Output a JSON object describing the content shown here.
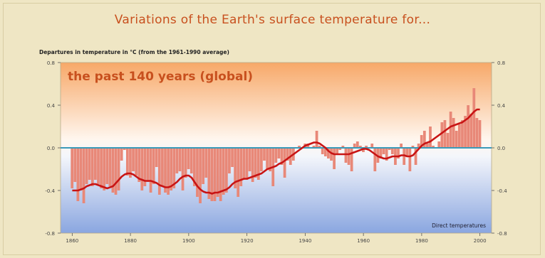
{
  "main_title": "Variations of the Earth's surface temperature for...",
  "axis_note": "Departures in temperature in °C (from the 1961-1990 average)",
  "colors": {
    "title": "#c8501e",
    "warm_top": "#f7a868",
    "cool_bottom": "#8aa6e0",
    "bars": "#e88878",
    "smooth_line": "#c81414",
    "baseline": "#3a9ab8"
  },
  "chart_data": {
    "type": "bar",
    "panel_title": "the past 140 years (global)",
    "legend": "Direct temperatures",
    "xlim": [
      1856,
      2004
    ],
    "ylim": [
      -0.8,
      0.8
    ],
    "x_ticks": [
      1860,
      1880,
      1900,
      1920,
      1940,
      1960,
      1980,
      2000
    ],
    "y_ticks": [
      -0.8,
      -0.4,
      0.0,
      0.4,
      0.8
    ],
    "y_tick_labels": [
      "-0.8",
      "-0.4",
      "0.0",
      "0.4",
      "0.8"
    ],
    "x": [
      1860,
      1861,
      1862,
      1863,
      1864,
      1865,
      1866,
      1867,
      1868,
      1869,
      1870,
      1871,
      1872,
      1873,
      1874,
      1875,
      1876,
      1877,
      1878,
      1879,
      1880,
      1881,
      1882,
      1883,
      1884,
      1885,
      1886,
      1887,
      1888,
      1889,
      1890,
      1891,
      1892,
      1893,
      1894,
      1895,
      1896,
      1897,
      1898,
      1899,
      1900,
      1901,
      1902,
      1903,
      1904,
      1905,
      1906,
      1907,
      1908,
      1909,
      1910,
      1911,
      1912,
      1913,
      1914,
      1915,
      1916,
      1917,
      1918,
      1919,
      1920,
      1921,
      1922,
      1923,
      1924,
      1925,
      1926,
      1927,
      1928,
      1929,
      1930,
      1931,
      1932,
      1933,
      1934,
      1935,
      1936,
      1937,
      1938,
      1939,
      1940,
      1941,
      1942,
      1943,
      1944,
      1945,
      1946,
      1947,
      1948,
      1949,
      1950,
      1951,
      1952,
      1953,
      1954,
      1955,
      1956,
      1957,
      1958,
      1959,
      1960,
      1961,
      1962,
      1963,
      1964,
      1965,
      1966,
      1967,
      1968,
      1969,
      1970,
      1971,
      1972,
      1973,
      1974,
      1975,
      1976,
      1977,
      1978,
      1979,
      1980,
      1981,
      1982,
      1983,
      1984,
      1985,
      1986,
      1987,
      1988,
      1989,
      1990,
      1991,
      1992,
      1993,
      1994,
      1995,
      1996,
      1997,
      1998,
      1999,
      2000
    ],
    "annual_anomaly": [
      -0.38,
      -0.32,
      -0.5,
      -0.4,
      -0.52,
      -0.34,
      -0.3,
      -0.36,
      -0.3,
      -0.34,
      -0.38,
      -0.4,
      -0.34,
      -0.36,
      -0.42,
      -0.44,
      -0.4,
      -0.12,
      -0.02,
      -0.26,
      -0.28,
      -0.22,
      -0.26,
      -0.32,
      -0.4,
      -0.36,
      -0.32,
      -0.42,
      -0.34,
      -0.18,
      -0.44,
      -0.36,
      -0.42,
      -0.44,
      -0.4,
      -0.38,
      -0.24,
      -0.22,
      -0.4,
      -0.28,
      -0.2,
      -0.24,
      -0.36,
      -0.46,
      -0.52,
      -0.34,
      -0.28,
      -0.48,
      -0.5,
      -0.5,
      -0.46,
      -0.5,
      -0.44,
      -0.42,
      -0.24,
      -0.18,
      -0.38,
      -0.46,
      -0.36,
      -0.3,
      -0.3,
      -0.22,
      -0.32,
      -0.28,
      -0.3,
      -0.22,
      -0.12,
      -0.2,
      -0.22,
      -0.36,
      -0.14,
      -0.1,
      -0.16,
      -0.28,
      -0.12,
      -0.16,
      -0.12,
      0.0,
      0.02,
      0.0,
      0.04,
      0.04,
      0.0,
      0.02,
      0.16,
      0.02,
      -0.06,
      -0.08,
      -0.1,
      -0.12,
      -0.2,
      -0.06,
      -0.02,
      0.02,
      -0.14,
      -0.16,
      -0.22,
      0.04,
      0.06,
      0.02,
      -0.04,
      0.02,
      0.0,
      0.04,
      -0.22,
      -0.14,
      -0.1,
      -0.06,
      -0.12,
      -0.02,
      -0.06,
      -0.16,
      -0.1,
      0.04,
      -0.16,
      -0.08,
      -0.22,
      0.02,
      -0.16,
      0.04,
      0.12,
      0.16,
      0.04,
      0.2,
      0.02,
      0.0,
      0.06,
      0.24,
      0.26,
      0.14,
      0.34,
      0.28,
      0.16,
      0.22,
      0.26,
      0.3,
      0.4,
      0.32,
      0.56,
      0.28,
      0.26
    ],
    "smoothed": [
      -0.4,
      -0.4,
      -0.4,
      -0.39,
      -0.38,
      -0.36,
      -0.35,
      -0.34,
      -0.34,
      -0.35,
      -0.36,
      -0.37,
      -0.38,
      -0.37,
      -0.36,
      -0.33,
      -0.3,
      -0.27,
      -0.25,
      -0.24,
      -0.24,
      -0.25,
      -0.27,
      -0.29,
      -0.3,
      -0.31,
      -0.31,
      -0.31,
      -0.32,
      -0.33,
      -0.35,
      -0.36,
      -0.37,
      -0.37,
      -0.36,
      -0.34,
      -0.32,
      -0.29,
      -0.27,
      -0.26,
      -0.26,
      -0.28,
      -0.32,
      -0.36,
      -0.39,
      -0.41,
      -0.42,
      -0.42,
      -0.43,
      -0.42,
      -0.42,
      -0.41,
      -0.4,
      -0.39,
      -0.37,
      -0.34,
      -0.32,
      -0.31,
      -0.3,
      -0.29,
      -0.29,
      -0.28,
      -0.27,
      -0.26,
      -0.25,
      -0.24,
      -0.22,
      -0.2,
      -0.19,
      -0.18,
      -0.17,
      -0.15,
      -0.14,
      -0.12,
      -0.1,
      -0.08,
      -0.06,
      -0.04,
      -0.02,
      0.0,
      0.02,
      0.03,
      0.04,
      0.05,
      0.05,
      0.04,
      0.02,
      0.0,
      -0.03,
      -0.05,
      -0.06,
      -0.06,
      -0.06,
      -0.06,
      -0.06,
      -0.06,
      -0.05,
      -0.04,
      -0.03,
      -0.02,
      -0.01,
      -0.01,
      -0.02,
      -0.04,
      -0.06,
      -0.08,
      -0.09,
      -0.1,
      -0.1,
      -0.09,
      -0.08,
      -0.08,
      -0.08,
      -0.07,
      -0.07,
      -0.08,
      -0.08,
      -0.07,
      -0.04,
      -0.01,
      0.02,
      0.04,
      0.05,
      0.06,
      0.08,
      0.1,
      0.12,
      0.14,
      0.16,
      0.18,
      0.2,
      0.21,
      0.22,
      0.23,
      0.24,
      0.26,
      0.28,
      0.31,
      0.34,
      0.36,
      0.36
    ]
  }
}
